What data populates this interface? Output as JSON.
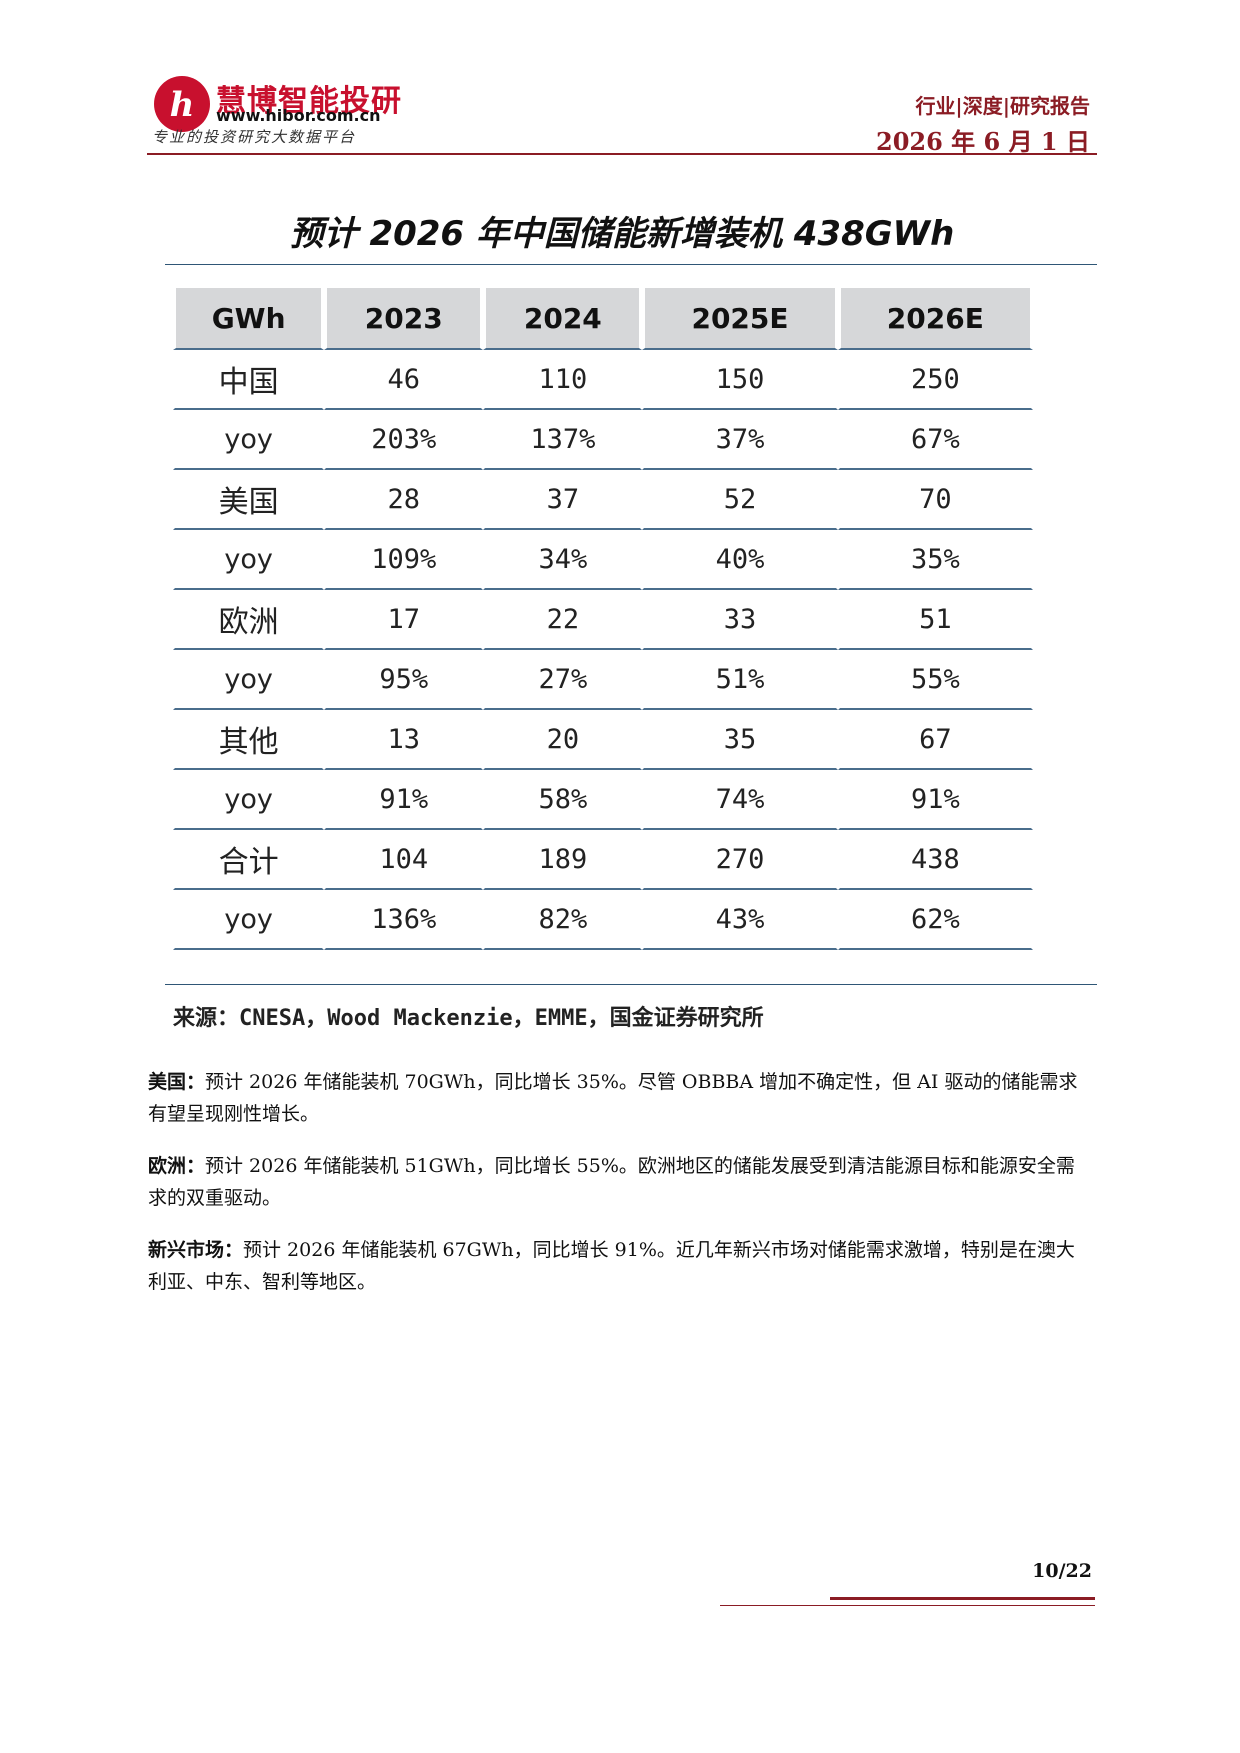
{
  "header": {
    "brand_name": "慧博智能投研",
    "brand_url": "www.hibor.com.cn",
    "brand_slogan": "专业的投资研究大数据平台",
    "logo_letter": "h",
    "report_type": "行业|深度|研究报告",
    "report_date": "2026 年 6 月 1 日"
  },
  "figure": {
    "title": "预计 2026 年中国储能新增装机 438GWh",
    "columns": [
      "GWh",
      "2023",
      "2024",
      "2025E",
      "2026E"
    ],
    "rows": [
      {
        "label": "中国",
        "values": [
          "46",
          "110",
          "150",
          "250"
        ]
      },
      {
        "label": "yoy",
        "values": [
          "203%",
          "137%",
          "37%",
          "67%"
        ]
      },
      {
        "label": "美国",
        "values": [
          "28",
          "37",
          "52",
          "70"
        ]
      },
      {
        "label": "yoy",
        "values": [
          "109%",
          "34%",
          "40%",
          "35%"
        ]
      },
      {
        "label": "欧洲",
        "values": [
          "17",
          "22",
          "33",
          "51"
        ]
      },
      {
        "label": "yoy",
        "values": [
          "95%",
          "27%",
          "51%",
          "55%"
        ]
      },
      {
        "label": "其他",
        "values": [
          "13",
          "20",
          "35",
          "67"
        ]
      },
      {
        "label": "yoy",
        "values": [
          "91%",
          "58%",
          "74%",
          "91%"
        ]
      },
      {
        "label": "合计",
        "values": [
          "104",
          "189",
          "270",
          "438"
        ]
      },
      {
        "label": "yoy",
        "values": [
          "136%",
          "82%",
          "43%",
          "62%"
        ]
      }
    ],
    "source": "来源：CNESA，Wood Mackenzie，EMME，国金证券研究所"
  },
  "paragraphs": [
    {
      "lead": "美国：",
      "text": "预计 2026 年储能装机 70GWh，同比增长 35%。尽管 OBBBA 增加不确定性，但 AI 驱动的储能需求有望呈现刚性增长。"
    },
    {
      "lead": "欧洲：",
      "text": "预计 2026 年储能装机 51GWh，同比增长 55%。欧洲地区的储能发展受到清洁能源目标和能源安全需求的双重驱动。"
    },
    {
      "lead": "新兴市场：",
      "text": "预计 2026 年储能装机 67GWh，同比增长 91%。近几年新兴市场对储能需求激增，特别是在澳大利亚、中东、智利等地区。"
    }
  ],
  "footer": {
    "page_number": "10/22"
  },
  "colors": {
    "brand_red": "#c8102e",
    "accent_dark_red": "#8b1c24",
    "table_header_bg": "#d6d7d9",
    "table_rule": "#4a6d8c"
  }
}
